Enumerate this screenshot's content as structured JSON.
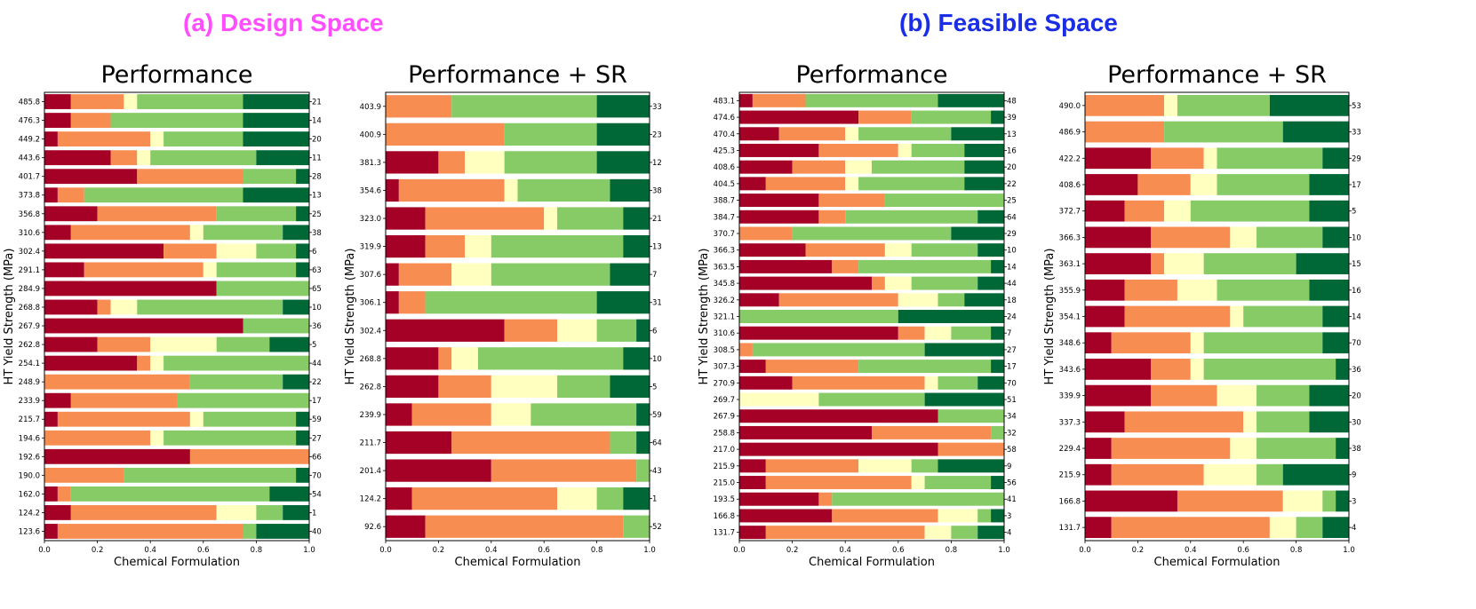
{
  "header": {
    "title_a": "(a) Design Space",
    "title_b": "(b) Feasible Space"
  },
  "colors": {
    "segments": [
      "#a50026",
      "#f88d52",
      "#ffffbf",
      "#86cb66",
      "#006837"
    ],
    "title_a": "#ff4dff",
    "title_b": "#1a2ee6"
  },
  "chart_data": [
    {
      "type": "bar",
      "orientation": "horizontal-stacked",
      "section": "(a) Design Space",
      "title": "Performance",
      "xlabel": "Chemical Formulation",
      "ylabel": "HT Yield Strength (MPa)",
      "xlim": [
        0,
        1
      ],
      "xticks": [
        "0.0",
        "0.2",
        "0.4",
        "0.6",
        "0.8",
        "1.0"
      ],
      "y_labels": [
        "485.8",
        "476.3",
        "449.2",
        "443.6",
        "401.7",
        "373.8",
        "356.8",
        "310.6",
        "302.4",
        "291.1",
        "284.9",
        "268.8",
        "267.9",
        "262.8",
        "254.1",
        "248.9",
        "233.9",
        "215.7",
        "194.6",
        "192.6",
        "190.0",
        "162.0",
        "124.2",
        "123.6"
      ],
      "right_labels": [
        "21",
        "14",
        "20",
        "11",
        "28",
        "13",
        "25",
        "38",
        "6",
        "63",
        "65",
        "10",
        "36",
        "5",
        "44",
        "22",
        "17",
        "59",
        "27",
        "66",
        "70",
        "54",
        "1",
        "40"
      ],
      "segments": [
        [
          0.1,
          0.2,
          0.05,
          0.4,
          0.25
        ],
        [
          0.1,
          0.15,
          0.0,
          0.5,
          0.25
        ],
        [
          0.05,
          0.35,
          0.05,
          0.3,
          0.25
        ],
        [
          0.25,
          0.1,
          0.05,
          0.4,
          0.2
        ],
        [
          0.35,
          0.4,
          0.0,
          0.2,
          0.05
        ],
        [
          0.05,
          0.1,
          0.0,
          0.6,
          0.25
        ],
        [
          0.2,
          0.45,
          0.0,
          0.3,
          0.05
        ],
        [
          0.1,
          0.45,
          0.05,
          0.3,
          0.1
        ],
        [
          0.45,
          0.2,
          0.15,
          0.15,
          0.05
        ],
        [
          0.15,
          0.45,
          0.05,
          0.3,
          0.05
        ],
        [
          0.65,
          0.0,
          0.0,
          0.35,
          0.0
        ],
        [
          0.2,
          0.05,
          0.1,
          0.55,
          0.1
        ],
        [
          0.75,
          0.0,
          0.0,
          0.25,
          0.0
        ],
        [
          0.2,
          0.2,
          0.25,
          0.2,
          0.15
        ],
        [
          0.35,
          0.05,
          0.05,
          0.55,
          0.0
        ],
        [
          0.0,
          0.55,
          0.0,
          0.35,
          0.1
        ],
        [
          0.1,
          0.4,
          0.0,
          0.5,
          0.0
        ],
        [
          0.05,
          0.5,
          0.05,
          0.35,
          0.05
        ],
        [
          0.0,
          0.4,
          0.05,
          0.5,
          0.05
        ],
        [
          0.55,
          0.45,
          0.0,
          0.0,
          0.0
        ],
        [
          0.0,
          0.3,
          0.0,
          0.65,
          0.05
        ],
        [
          0.05,
          0.05,
          0.0,
          0.75,
          0.15
        ],
        [
          0.1,
          0.55,
          0.15,
          0.1,
          0.1
        ],
        [
          0.05,
          0.7,
          0.0,
          0.05,
          0.2
        ]
      ]
    },
    {
      "type": "bar",
      "orientation": "horizontal-stacked",
      "section": "(a) Design Space",
      "title": "Performance + SR",
      "xlabel": "Chemical Formulation",
      "ylabel": "HT Yield Strength (MPa)",
      "xlim": [
        0,
        1
      ],
      "xticks": [
        "0.0",
        "0.2",
        "0.4",
        "0.6",
        "0.8",
        "1.0"
      ],
      "y_labels": [
        "403.9",
        "400.9",
        "381.3",
        "354.6",
        "323.0",
        "319.9",
        "307.6",
        "306.1",
        "302.4",
        "268.8",
        "262.8",
        "239.9",
        "211.7",
        "201.4",
        "124.2",
        "92.6"
      ],
      "right_labels": [
        "33",
        "23",
        "12",
        "38",
        "21",
        "13",
        "7",
        "31",
        "6",
        "10",
        "5",
        "59",
        "64",
        "43",
        "1",
        "52"
      ],
      "segments": [
        [
          0.0,
          0.25,
          0.0,
          0.55,
          0.2
        ],
        [
          0.0,
          0.45,
          0.0,
          0.35,
          0.2
        ],
        [
          0.2,
          0.1,
          0.15,
          0.35,
          0.2
        ],
        [
          0.05,
          0.4,
          0.05,
          0.35,
          0.15
        ],
        [
          0.15,
          0.45,
          0.05,
          0.25,
          0.1
        ],
        [
          0.15,
          0.15,
          0.1,
          0.5,
          0.1
        ],
        [
          0.05,
          0.2,
          0.15,
          0.45,
          0.15
        ],
        [
          0.05,
          0.1,
          0.0,
          0.65,
          0.2
        ],
        [
          0.45,
          0.2,
          0.15,
          0.15,
          0.05
        ],
        [
          0.2,
          0.05,
          0.1,
          0.55,
          0.1
        ],
        [
          0.2,
          0.2,
          0.25,
          0.2,
          0.15
        ],
        [
          0.1,
          0.3,
          0.15,
          0.4,
          0.05
        ],
        [
          0.25,
          0.6,
          0.0,
          0.1,
          0.05
        ],
        [
          0.4,
          0.55,
          0.0,
          0.05,
          0.0
        ],
        [
          0.1,
          0.55,
          0.15,
          0.1,
          0.1
        ],
        [
          0.15,
          0.75,
          0.0,
          0.1,
          0.0
        ]
      ]
    },
    {
      "type": "bar",
      "orientation": "horizontal-stacked",
      "section": "(b) Feasible Space",
      "title": "Performance",
      "xlabel": "Chemical Formulation",
      "ylabel": "HT Yield Strength (MPa)",
      "xlim": [
        0,
        1
      ],
      "xticks": [
        "0.0",
        "0.2",
        "0.4",
        "0.6",
        "0.8",
        "1.0"
      ],
      "y_labels": [
        "483.1",
        "474.6",
        "470.4",
        "425.3",
        "408.6",
        "404.5",
        "388.7",
        "384.7",
        "370.7",
        "366.3",
        "363.5",
        "345.8",
        "326.2",
        "321.1",
        "310.6",
        "308.5",
        "307.3",
        "270.9",
        "269.7",
        "267.9",
        "258.8",
        "217.0",
        "215.9",
        "215.0",
        "193.5",
        "166.8",
        "131.7"
      ],
      "right_labels": [
        "48",
        "39",
        "13",
        "16",
        "20",
        "22",
        "25",
        "64",
        "29",
        "10",
        "14",
        "44",
        "18",
        "24",
        "7",
        "27",
        "17",
        "70",
        "51",
        "34",
        "32",
        "58",
        "9",
        "56",
        "41",
        "3",
        "4"
      ],
      "segments": [
        [
          0.05,
          0.2,
          0.0,
          0.5,
          0.25
        ],
        [
          0.45,
          0.2,
          0.0,
          0.3,
          0.05
        ],
        [
          0.15,
          0.25,
          0.05,
          0.35,
          0.2
        ],
        [
          0.3,
          0.3,
          0.05,
          0.2,
          0.15
        ],
        [
          0.2,
          0.2,
          0.1,
          0.35,
          0.15
        ],
        [
          0.1,
          0.3,
          0.05,
          0.4,
          0.15
        ],
        [
          0.3,
          0.25,
          0.0,
          0.45,
          0.0
        ],
        [
          0.3,
          0.1,
          0.0,
          0.5,
          0.1
        ],
        [
          0.0,
          0.2,
          0.0,
          0.6,
          0.2
        ],
        [
          0.25,
          0.3,
          0.1,
          0.25,
          0.1
        ],
        [
          0.35,
          0.1,
          0.0,
          0.5,
          0.05
        ],
        [
          0.5,
          0.05,
          0.1,
          0.25,
          0.1
        ],
        [
          0.15,
          0.45,
          0.15,
          0.1,
          0.15
        ],
        [
          0.0,
          0.0,
          0.0,
          0.6,
          0.4
        ],
        [
          0.6,
          0.1,
          0.1,
          0.15,
          0.05
        ],
        [
          0.0,
          0.05,
          0.0,
          0.65,
          0.3
        ],
        [
          0.1,
          0.35,
          0.0,
          0.5,
          0.05
        ],
        [
          0.2,
          0.5,
          0.05,
          0.15,
          0.1
        ],
        [
          0.0,
          0.0,
          0.3,
          0.4,
          0.3
        ],
        [
          0.75,
          0.0,
          0.0,
          0.25,
          0.0
        ],
        [
          0.5,
          0.45,
          0.0,
          0.05,
          0.0
        ],
        [
          0.75,
          0.25,
          0.0,
          0.0,
          0.0
        ],
        [
          0.1,
          0.35,
          0.2,
          0.1,
          0.25
        ],
        [
          0.1,
          0.55,
          0.05,
          0.25,
          0.05
        ],
        [
          0.3,
          0.05,
          0.0,
          0.65,
          0.0
        ],
        [
          0.35,
          0.4,
          0.15,
          0.05,
          0.05
        ],
        [
          0.1,
          0.6,
          0.1,
          0.1,
          0.1
        ]
      ]
    },
    {
      "type": "bar",
      "orientation": "horizontal-stacked",
      "section": "(b) Feasible Space",
      "title": "Performance + SR",
      "xlabel": "Chemical Formulation",
      "ylabel": "HT Yield Strength (MPa)",
      "xlim": [
        0,
        1
      ],
      "xticks": [
        "0.0",
        "0.2",
        "0.4",
        "0.6",
        "0.8",
        "1.0"
      ],
      "y_labels": [
        "490.0",
        "486.9",
        "422.2",
        "408.6",
        "372.7",
        "366.3",
        "363.1",
        "355.9",
        "354.1",
        "348.6",
        "343.6",
        "339.9",
        "337.3",
        "229.4",
        "215.9",
        "166.8",
        "131.7"
      ],
      "right_labels": [
        "53",
        "33",
        "29",
        "17",
        "5",
        "10",
        "15",
        "16",
        "14",
        "70",
        "36",
        "20",
        "30",
        "38",
        "9",
        "3",
        "4"
      ],
      "segments": [
        [
          0.0,
          0.3,
          0.05,
          0.35,
          0.3
        ],
        [
          0.0,
          0.3,
          0.0,
          0.45,
          0.25
        ],
        [
          0.25,
          0.2,
          0.05,
          0.4,
          0.1
        ],
        [
          0.2,
          0.2,
          0.1,
          0.35,
          0.15
        ],
        [
          0.15,
          0.15,
          0.1,
          0.45,
          0.15
        ],
        [
          0.25,
          0.3,
          0.1,
          0.25,
          0.1
        ],
        [
          0.25,
          0.05,
          0.15,
          0.35,
          0.2
        ],
        [
          0.15,
          0.2,
          0.15,
          0.35,
          0.15
        ],
        [
          0.15,
          0.4,
          0.05,
          0.3,
          0.1
        ],
        [
          0.1,
          0.3,
          0.05,
          0.45,
          0.1
        ],
        [
          0.25,
          0.15,
          0.05,
          0.5,
          0.05
        ],
        [
          0.25,
          0.25,
          0.15,
          0.2,
          0.15
        ],
        [
          0.15,
          0.45,
          0.05,
          0.2,
          0.15
        ],
        [
          0.1,
          0.45,
          0.1,
          0.3,
          0.05
        ],
        [
          0.1,
          0.35,
          0.2,
          0.1,
          0.25
        ],
        [
          0.35,
          0.4,
          0.15,
          0.05,
          0.05
        ],
        [
          0.1,
          0.6,
          0.1,
          0.1,
          0.1
        ]
      ]
    }
  ]
}
